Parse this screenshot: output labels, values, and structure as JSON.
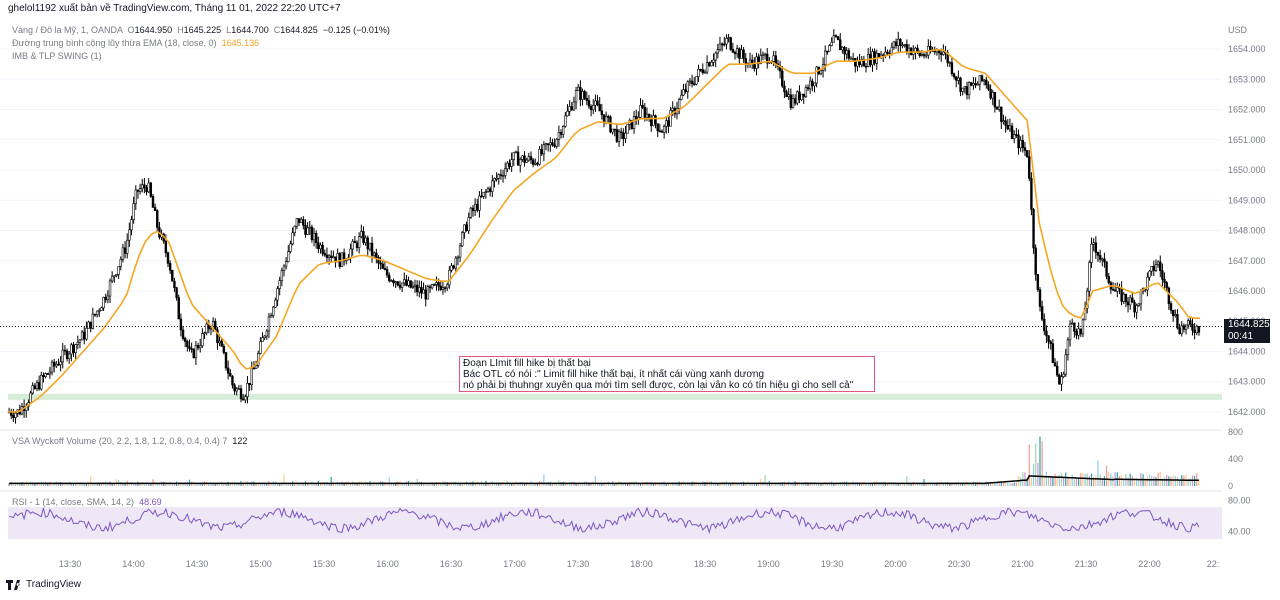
{
  "attribution": "ghelol1192 xuất bản về TradingView.com, Tháng 11 01, 2022 22:20 UTC+7",
  "legend": {
    "symbol": "Vàng / Đô la Mỹ, 1, OANDA",
    "ohlc": {
      "O": "1644.950",
      "H": "1645.225",
      "L": "1644.700",
      "C": "1644.825"
    },
    "change": "−0.125 (−0.01%)",
    "ema_label": "Đường trung bình cộng lũy thừa EMA (18, close, 0)",
    "ema_value": "1645.136",
    "indicator2": "IMB & TLP SWING (1)"
  },
  "price_axis": {
    "currency": "USD",
    "ticks": [
      "1654.000",
      "1653.000",
      "1652.000",
      "1651.000",
      "1650.000",
      "1649.000",
      "1648.000",
      "1647.000",
      "1646.000",
      "1645.000",
      "1644.000",
      "1643.000",
      "1642.000"
    ],
    "last_price": "1644.825",
    "countdown": "00:41"
  },
  "time_axis": [
    "13:30",
    "14:00",
    "14:30",
    "15:00",
    "15:30",
    "16:00",
    "16:30",
    "17:00",
    "17:30",
    "18:00",
    "18:30",
    "19:00",
    "19:30",
    "20:00",
    "20:30",
    "21:00",
    "21:30",
    "22:00",
    "22:"
  ],
  "note": {
    "line1": "Đoạn LImit fill hike bị thất bại",
    "line2": "Bác OTL có nói  :\" Limit fill hike thất bại, ít nhất cái vùng xanh dương",
    "line3": "nó phải bị thuhngr xuyên qua mới tìm sell được, còn lại vẫn ko có tín hiệu gì cho sell cả\""
  },
  "volume_pane": {
    "label": "VSA Wyckoff Volume (20, 2.2, 1.8, 1.2, 0.8, 0.4, 0.4)  7",
    "value": "122",
    "ticks": [
      "800",
      "400",
      "0"
    ]
  },
  "rsi_pane": {
    "label": "RSI - 1 (14, close, SMA, 14, 2)",
    "value": "48.69",
    "ticks": [
      "80.00",
      "40.00"
    ]
  },
  "logo_text": "TradingView",
  "colors": {
    "candle": "#000000",
    "ema": "#f5a623",
    "support_zone": "#d7ecd9",
    "rsi": "#7e57c2",
    "rsi_band": "#ede7f6",
    "volume_ma": "#000000",
    "note_border": "#e0567d"
  },
  "chart_data": {
    "type": "candlestick",
    "title": "Vàng / Đô la Mỹ, 1, OANDA",
    "ylim": [
      1641.8,
      1654.3
    ],
    "x": [
      "13:10",
      "13:20",
      "13:30",
      "13:40",
      "13:50",
      "14:00",
      "14:05",
      "14:10",
      "14:15",
      "14:20",
      "14:25",
      "14:30",
      "14:40",
      "14:50",
      "14:55",
      "15:00",
      "15:10",
      "15:20",
      "15:30",
      "15:40",
      "15:50",
      "16:00",
      "16:10",
      "16:20",
      "16:30",
      "16:40",
      "16:50",
      "17:00",
      "17:10",
      "17:20",
      "17:30",
      "17:40",
      "17:50",
      "18:00",
      "18:10",
      "18:20",
      "18:30",
      "18:40",
      "18:50",
      "19:00",
      "19:10",
      "19:20",
      "19:30",
      "19:40",
      "19:50",
      "20:00",
      "20:10",
      "20:20",
      "20:30",
      "20:40",
      "20:50",
      "21:00",
      "21:02",
      "21:05",
      "21:10",
      "21:15",
      "21:20",
      "21:25",
      "21:30",
      "21:40",
      "21:50",
      "22:00",
      "22:10",
      "22:15"
    ],
    "series": [
      {
        "name": "close",
        "values": [
          1642.0,
          1643.0,
          1643.8,
          1644.5,
          1645.8,
          1647.5,
          1649.3,
          1649.5,
          1648.0,
          1647.0,
          1645.0,
          1643.8,
          1645.0,
          1642.8,
          1642.6,
          1643.5,
          1646.0,
          1648.4,
          1647.5,
          1647.0,
          1647.8,
          1646.6,
          1646.2,
          1645.9,
          1646.4,
          1648.5,
          1649.5,
          1650.4,
          1650.3,
          1651.0,
          1652.6,
          1652.0,
          1651.0,
          1652.0,
          1651.3,
          1652.6,
          1653.5,
          1654.3,
          1653.5,
          1653.8,
          1652.2,
          1653.0,
          1654.3,
          1653.5,
          1653.8,
          1654.2,
          1653.8,
          1654.0,
          1652.6,
          1653.0,
          1651.4,
          1650.5,
          1648.0,
          1645.5,
          1644.2,
          1642.8,
          1645.0,
          1644.5,
          1647.7,
          1646.0,
          1645.5,
          1647.0,
          1644.8,
          1644.8
        ]
      },
      {
        "name": "EMA (18, close, 0)",
        "values": [
          1642.0,
          1642.5,
          1643.2,
          1644.0,
          1644.8,
          1645.8,
          1647.0,
          1647.8,
          1648.0,
          1647.6,
          1646.6,
          1645.6,
          1644.8,
          1644.0,
          1643.4,
          1643.5,
          1644.5,
          1646.2,
          1646.9,
          1647.0,
          1647.2,
          1647.0,
          1646.7,
          1646.4,
          1646.3,
          1647.2,
          1648.3,
          1649.3,
          1649.9,
          1650.4,
          1651.3,
          1651.6,
          1651.5,
          1651.7,
          1651.7,
          1652.1,
          1652.8,
          1653.5,
          1653.5,
          1653.6,
          1653.2,
          1653.2,
          1653.6,
          1653.6,
          1653.7,
          1653.9,
          1653.9,
          1654.0,
          1653.4,
          1653.2,
          1652.4,
          1651.6,
          1650.2,
          1648.3,
          1646.8,
          1645.6,
          1645.2,
          1645.1,
          1646.0,
          1646.2,
          1645.9,
          1646.3,
          1645.6,
          1645.1
        ]
      }
    ],
    "support_zone": [
      1642.4,
      1642.6
    ],
    "last_price": 1644.825
  }
}
